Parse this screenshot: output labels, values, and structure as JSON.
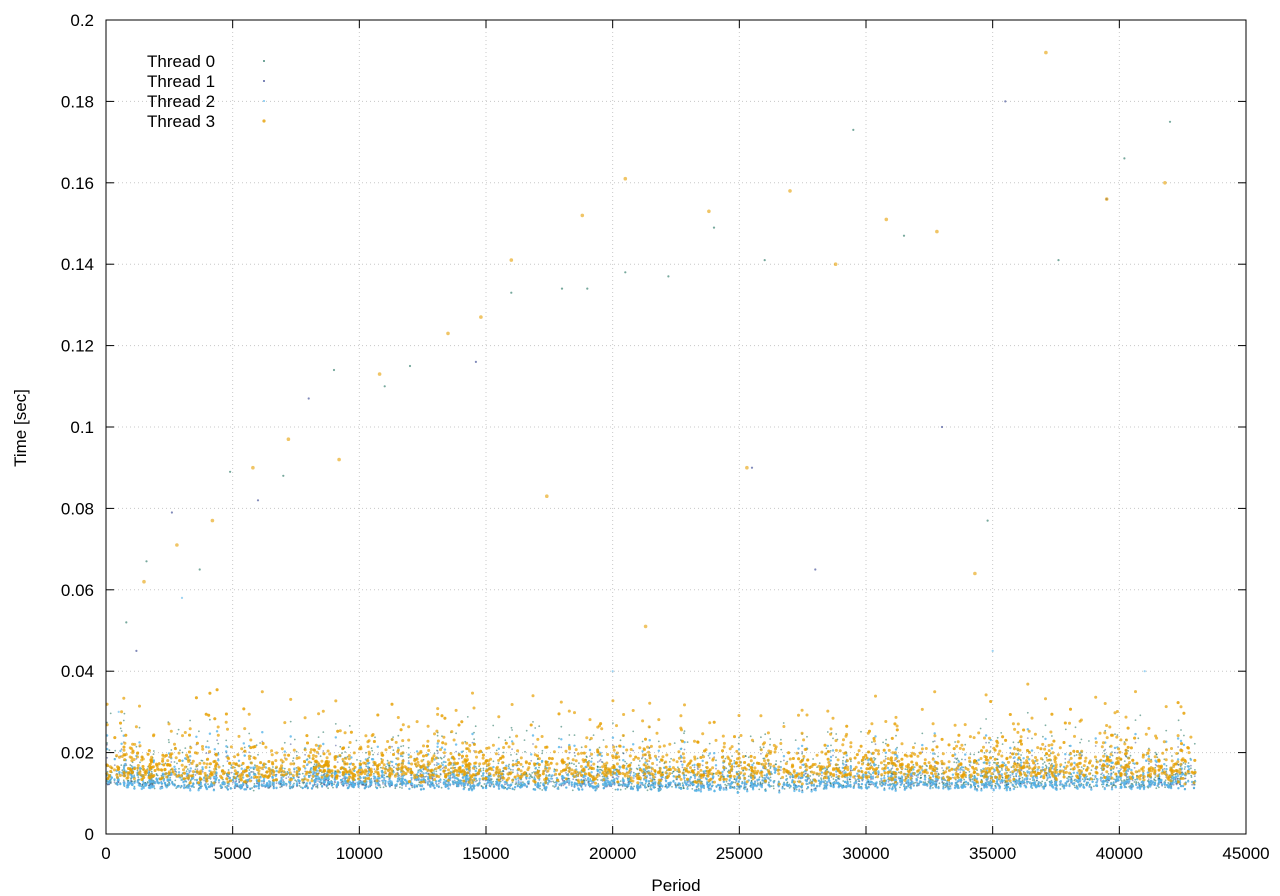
{
  "chart_data": {
    "type": "scatter",
    "title": "",
    "xlabel": "Period",
    "ylabel": "Time [sec]",
    "xlim": [
      0,
      45000
    ],
    "ylim": [
      0,
      0.2
    ],
    "x_ticks": [
      0,
      5000,
      10000,
      15000,
      20000,
      25000,
      30000,
      35000,
      40000,
      45000
    ],
    "x_tick_labels": [
      "0",
      "5000",
      "10000",
      "15000",
      "20000",
      "25000",
      "30000",
      "35000",
      "40000",
      "45000"
    ],
    "y_ticks": [
      0,
      0.02,
      0.04,
      0.06,
      0.08,
      0.1,
      0.12,
      0.14,
      0.16,
      0.18,
      0.2
    ],
    "y_tick_labels": [
      "0",
      "0.02",
      "0.04",
      "0.06",
      "0.08",
      "0.1",
      "0.12",
      "0.14",
      "0.16",
      "0.18",
      "0.2"
    ],
    "grid": true,
    "legend_position": "top-left",
    "period_range": [
      0,
      43000
    ],
    "series": [
      {
        "name": "Thread 0",
        "color": "#1a6e5a",
        "base_segments": [
          [
            0,
            0.0135
          ],
          [
            1000,
            0.0125
          ],
          [
            2000,
            0.0125
          ],
          [
            5000,
            0.012
          ],
          [
            10000,
            0.0125
          ],
          [
            20000,
            0.012
          ],
          [
            25000,
            0.0118
          ],
          [
            30000,
            0.0125
          ],
          [
            35000,
            0.0125
          ],
          [
            40000,
            0.0125
          ],
          [
            43000,
            0.0125
          ]
        ],
        "outliers": [
          [
            800,
            0.052
          ],
          [
            1600,
            0.067
          ],
          [
            3700,
            0.065
          ],
          [
            4900,
            0.089
          ],
          [
            7000,
            0.088
          ],
          [
            9000,
            0.114
          ],
          [
            11000,
            0.11
          ],
          [
            12000,
            0.115
          ],
          [
            16000,
            0.133
          ],
          [
            18000,
            0.134
          ],
          [
            19000,
            0.134
          ],
          [
            20500,
            0.138
          ],
          [
            22200,
            0.137
          ],
          [
            24000,
            0.149
          ],
          [
            26000,
            0.141
          ],
          [
            29500,
            0.173
          ],
          [
            31500,
            0.147
          ],
          [
            34800,
            0.077
          ],
          [
            37600,
            0.141
          ],
          [
            40200,
            0.166
          ],
          [
            42000,
            0.175
          ]
        ]
      },
      {
        "name": "Thread 1",
        "color": "#2b3a8a",
        "base_segments": [
          [
            0,
            0.0128
          ],
          [
            5000,
            0.0118
          ],
          [
            10000,
            0.0122
          ],
          [
            20000,
            0.0118
          ],
          [
            30000,
            0.012
          ],
          [
            43000,
            0.0122
          ]
        ],
        "outliers": [
          [
            1200,
            0.045
          ],
          [
            2600,
            0.079
          ],
          [
            6000,
            0.082
          ],
          [
            8000,
            0.107
          ],
          [
            14600,
            0.116
          ],
          [
            25500,
            0.09
          ],
          [
            28000,
            0.065
          ],
          [
            33000,
            0.1
          ],
          [
            35500,
            0.18
          ],
          [
            39500,
            0.156
          ]
        ]
      },
      {
        "name": "Thread 2",
        "color": "#56b4e9",
        "base_segments": [
          [
            0,
            0.014
          ],
          [
            1000,
            0.0125
          ],
          [
            5000,
            0.0125
          ],
          [
            10000,
            0.013
          ],
          [
            15000,
            0.0125
          ],
          [
            20000,
            0.0125
          ],
          [
            25000,
            0.012
          ],
          [
            30000,
            0.0125
          ],
          [
            35000,
            0.0125
          ],
          [
            40000,
            0.0125
          ],
          [
            43000,
            0.013
          ]
        ],
        "outliers": [
          [
            500,
            0.03
          ],
          [
            3000,
            0.058
          ],
          [
            20000,
            0.04
          ],
          [
            35000,
            0.045
          ],
          [
            41000,
            0.04
          ]
        ]
      },
      {
        "name": "Thread 3",
        "color": "#e69f00",
        "base_segments": [
          [
            0,
            0.016
          ],
          [
            1000,
            0.016
          ],
          [
            5000,
            0.0155
          ],
          [
            10000,
            0.016
          ],
          [
            15000,
            0.0158
          ],
          [
            20000,
            0.0155
          ],
          [
            25000,
            0.0155
          ],
          [
            30000,
            0.016
          ],
          [
            35000,
            0.016
          ],
          [
            40000,
            0.0165
          ],
          [
            43000,
            0.0155
          ]
        ],
        "outliers": [
          [
            1500,
            0.062
          ],
          [
            2800,
            0.071
          ],
          [
            4200,
            0.077
          ],
          [
            5800,
            0.09
          ],
          [
            7200,
            0.097
          ],
          [
            9200,
            0.092
          ],
          [
            10800,
            0.113
          ],
          [
            13500,
            0.123
          ],
          [
            14800,
            0.127
          ],
          [
            16000,
            0.141
          ],
          [
            17400,
            0.083
          ],
          [
            18800,
            0.152
          ],
          [
            20500,
            0.161
          ],
          [
            21300,
            0.051
          ],
          [
            23800,
            0.153
          ],
          [
            25300,
            0.09
          ],
          [
            27000,
            0.158
          ],
          [
            28800,
            0.14
          ],
          [
            30800,
            0.151
          ],
          [
            32800,
            0.148
          ],
          [
            34300,
            0.064
          ],
          [
            37100,
            0.192
          ],
          [
            39500,
            0.156
          ],
          [
            41800,
            0.16
          ]
        ]
      }
    ]
  }
}
